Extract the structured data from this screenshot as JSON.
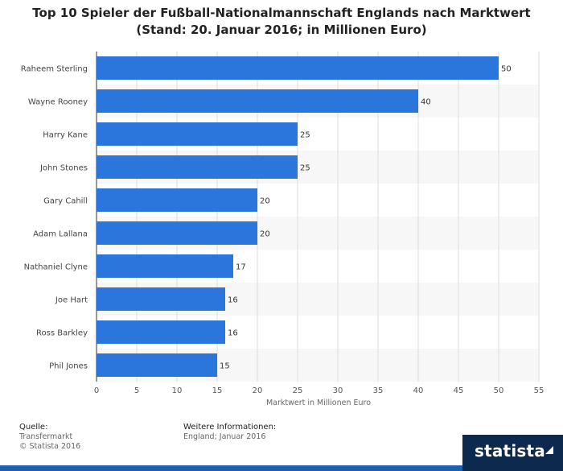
{
  "title_line1": "Top 10 Spieler der Fußball-Nationalmannschaft Englands nach Marktwert",
  "title_line2": "(Stand: 20. Januar 2016; in Millionen Euro)",
  "chart_data": {
    "type": "bar",
    "orientation": "horizontal",
    "categories": [
      "Raheem Sterling",
      "Wayne Rooney",
      "Harry Kane",
      "John Stones",
      "Gary Cahill",
      "Adam Lallana",
      "Nathaniel Clyne",
      "Joe Hart",
      "Ross Barkley",
      "Phil Jones"
    ],
    "values": [
      50,
      40,
      25,
      25,
      20,
      20,
      17,
      16,
      16,
      15
    ],
    "xlabel": "Marktwert in Millionen Euro",
    "ylabel": "",
    "xlim": [
      0,
      55
    ],
    "xticks": [
      0,
      5,
      10,
      15,
      20,
      25,
      30,
      35,
      40,
      45,
      50,
      55
    ],
    "grid": "vertical",
    "bar_color": "#2a76dd"
  },
  "footer": {
    "source_label": "Quelle:",
    "source_line1": "Transfermarkt",
    "source_line2": "© Statista 2016",
    "info_label": "Weitere Informationen:",
    "info_line1": "England; Januar 2016"
  },
  "brand": "statista"
}
